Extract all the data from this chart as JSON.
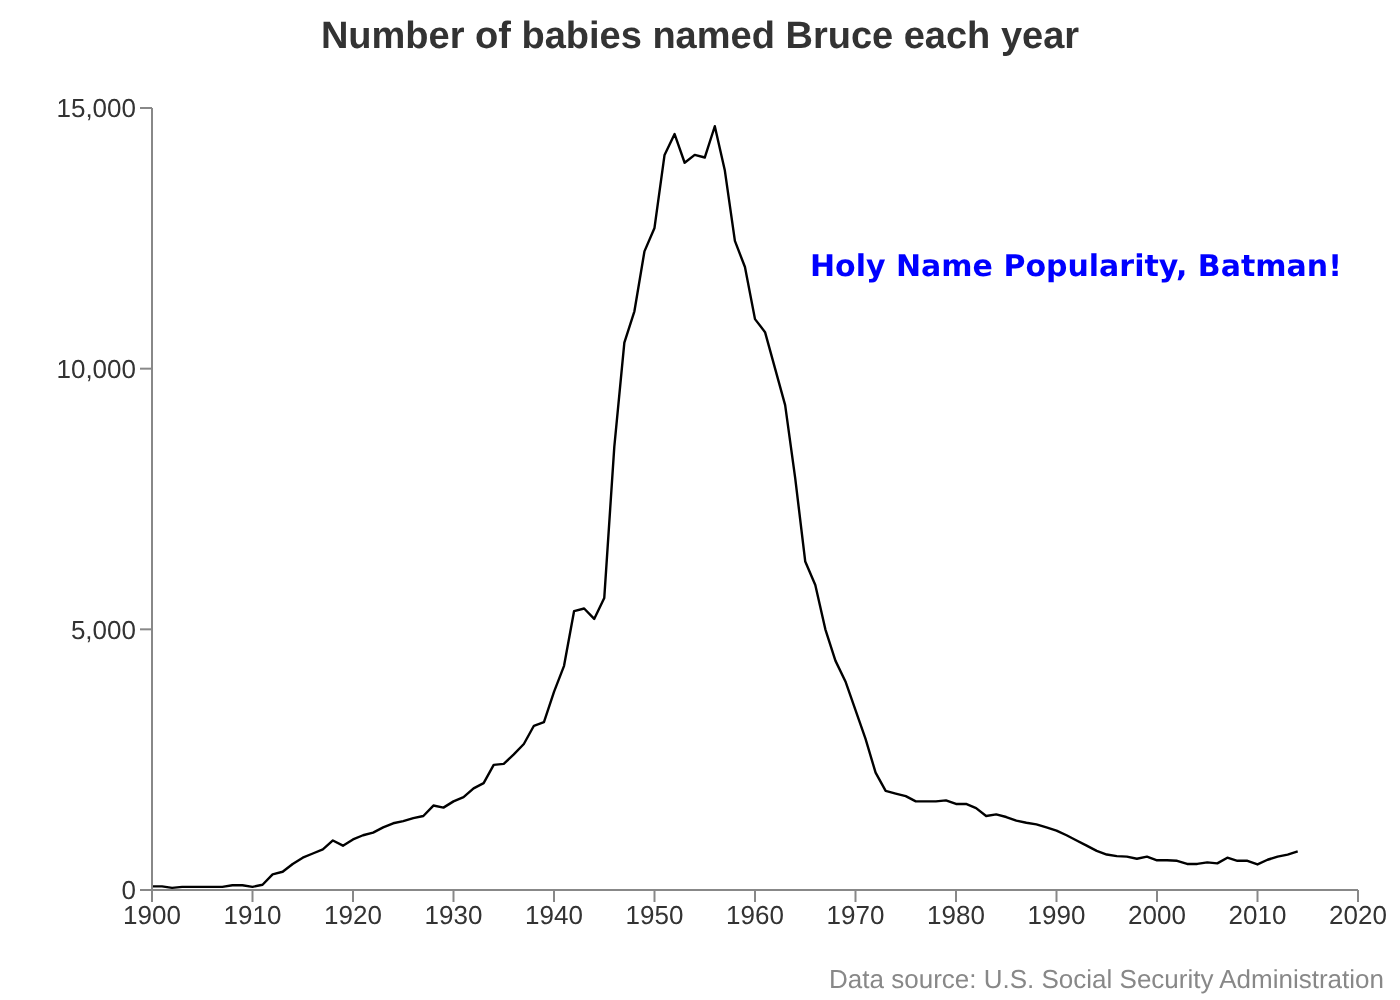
{
  "chart_data": {
    "type": "line",
    "title": "Number of babies named Bruce each year",
    "annotations": [
      "Holy Name Popularity, Batman!",
      "Data source: U.S. Social Security Administration"
    ],
    "x": [
      1900,
      1901,
      1902,
      1903,
      1904,
      1905,
      1906,
      1907,
      1908,
      1909,
      1910,
      1911,
      1912,
      1913,
      1914,
      1915,
      1916,
      1917,
      1918,
      1919,
      1920,
      1921,
      1922,
      1923,
      1924,
      1925,
      1926,
      1927,
      1928,
      1929,
      1930,
      1931,
      1932,
      1933,
      1934,
      1935,
      1936,
      1937,
      1938,
      1939,
      1940,
      1941,
      1942,
      1943,
      1944,
      1945,
      1946,
      1947,
      1948,
      1949,
      1950,
      1951,
      1952,
      1953,
      1954,
      1955,
      1956,
      1957,
      1958,
      1959,
      1960,
      1961,
      1962,
      1963,
      1964,
      1965,
      1966,
      1967,
      1968,
      1969,
      1970,
      1971,
      1972,
      1973,
      1974,
      1975,
      1976,
      1977,
      1978,
      1979,
      1980,
      1981,
      1982,
      1983,
      1984,
      1985,
      1986,
      1987,
      1988,
      1989,
      1990,
      1991,
      1992,
      1993,
      1994,
      1995,
      1996,
      1997,
      1998,
      1999,
      2000,
      2001,
      2002,
      2003,
      2004,
      2005,
      2006,
      2007,
      2008,
      2009,
      2010,
      2011,
      2012,
      2013,
      2014
    ],
    "series": [
      {
        "color": "#000000",
        "values": [
          70,
          70,
          40,
          60,
          60,
          60,
          60,
          60,
          90,
          90,
          60,
          100,
          300,
          350,
          500,
          620,
          700,
          780,
          950,
          850,
          970,
          1050,
          1100,
          1200,
          1280,
          1320,
          1380,
          1420,
          1620,
          1580,
          1700,
          1780,
          1950,
          2050,
          2400,
          2420,
          2600,
          2800,
          3150,
          3220,
          3800,
          4300,
          5350,
          5400,
          5200,
          5600,
          8500,
          10500,
          11100,
          12250,
          12700,
          14100,
          14500,
          13950,
          14100,
          14050,
          14650,
          13800,
          12450,
          11950,
          10950,
          10700,
          10000,
          9300,
          7900,
          6300,
          5850,
          5000,
          4400,
          4000,
          3450,
          2900,
          2250,
          1900,
          1850,
          1800,
          1700,
          1700,
          1700,
          1720,
          1650,
          1650,
          1570,
          1420,
          1450,
          1400,
          1330,
          1290,
          1260,
          1200,
          1140,
          1050,
          950,
          850,
          750,
          680,
          650,
          640,
          600,
          640,
          570,
          570,
          560,
          500,
          500,
          530,
          510,
          620,
          560,
          560,
          490,
          580,
          640,
          680,
          740
        ]
      }
    ],
    "xlim": [
      1900,
      2020
    ],
    "xticks": [
      1900,
      1910,
      1920,
      1930,
      1940,
      1950,
      1960,
      1970,
      1980,
      1990,
      2000,
      2010,
      2020
    ],
    "ylim": [
      0,
      15000
    ],
    "yticks": [
      0,
      {
        "value": 5000,
        "label": "5,000"
      },
      {
        "value": 10000,
        "label": "10,000"
      },
      {
        "value": 15000,
        "label": "15,000"
      }
    ],
    "grid": false,
    "legend": false,
    "marker": "none",
    "line_style": "solid"
  }
}
